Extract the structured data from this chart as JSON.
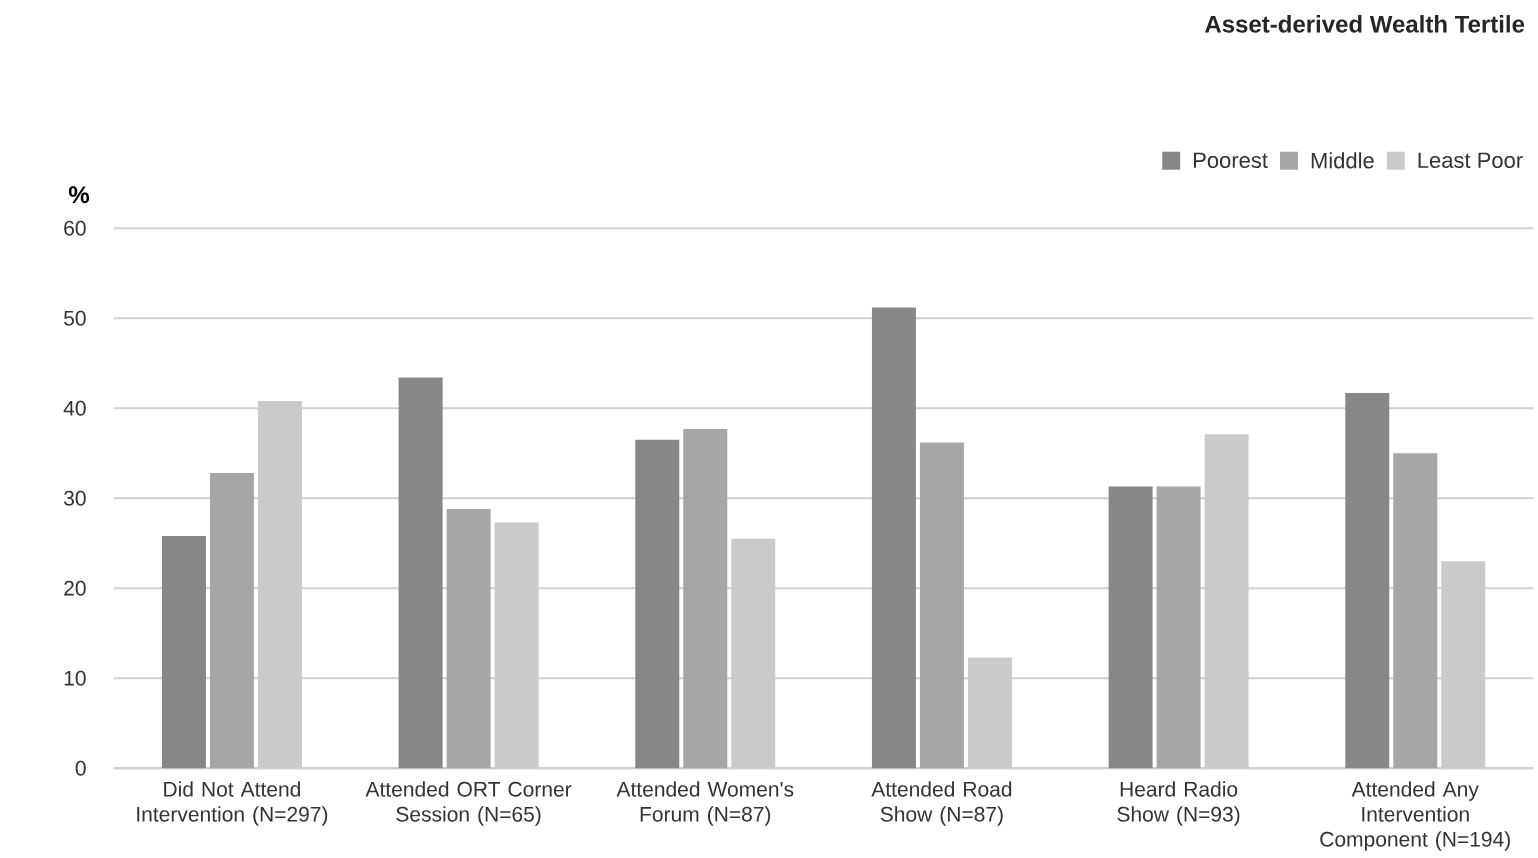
{
  "chart_data": {
    "type": "bar",
    "ylabel": "%",
    "legend_title": "Asset-derived Wealth Tertile",
    "categories": [
      "Did Not Attend Intervention (N=297)",
      "Attended ORT Corner Session (N=65)",
      "Attended Women's Forum (N=87)",
      "Attended Road Show (N=87)",
      "Heard Radio Show (N=93)",
      "Attended Any Intervention Component (N=194)"
    ],
    "series": [
      {
        "name": "Poorest",
        "color": "#878787",
        "values": [
          25.8,
          43.4,
          36.5,
          51.2,
          31.3,
          41.7
        ]
      },
      {
        "name": "Middle",
        "color": "#a6a6a6",
        "values": [
          32.8,
          28.8,
          37.7,
          36.2,
          31.3,
          35.0
        ]
      },
      {
        "name": "Least Poor",
        "color": "#cacaca",
        "values": [
          40.8,
          27.3,
          25.5,
          12.3,
          37.1,
          23.0
        ]
      }
    ],
    "ylim": [
      0,
      60
    ],
    "yticks": [
      0,
      10,
      20,
      30,
      40,
      50,
      60
    ],
    "grid": "y",
    "legend": "top right"
  }
}
